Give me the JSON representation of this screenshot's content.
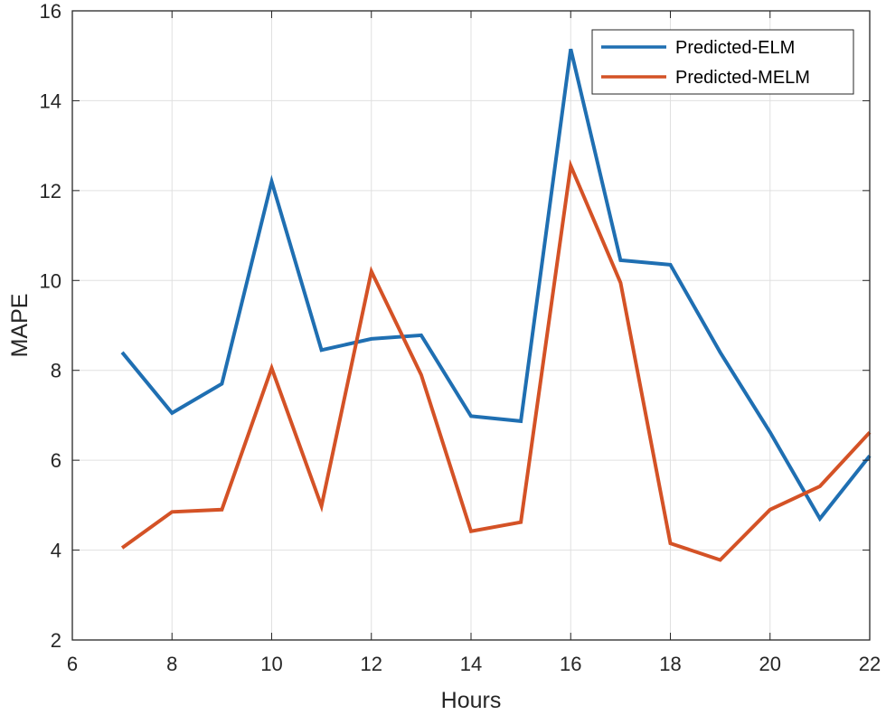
{
  "chart_data": {
    "type": "line",
    "title": "",
    "xlabel": "Hours",
    "ylabel": "MAPE",
    "xlim": [
      6,
      22
    ],
    "ylim": [
      2,
      16
    ],
    "xticks": [
      6,
      8,
      10,
      12,
      14,
      16,
      18,
      20,
      22
    ],
    "yticks": [
      2,
      4,
      6,
      8,
      10,
      12,
      14,
      16
    ],
    "grid": true,
    "legend_position": "top-right",
    "x": [
      7,
      8,
      9,
      10,
      11,
      12,
      13,
      14,
      15,
      16,
      17,
      18,
      19,
      20,
      21,
      22
    ],
    "series": [
      {
        "name": "Predicted-ELM",
        "color": "#1f6fb2",
        "values": [
          8.4,
          7.05,
          7.7,
          12.2,
          8.45,
          8.7,
          8.78,
          6.98,
          6.87,
          15.15,
          10.45,
          10.35,
          8.4,
          6.62,
          4.7,
          6.1
        ]
      },
      {
        "name": "Predicted-MELM",
        "color": "#d45226",
        "values": [
          4.05,
          4.85,
          4.9,
          8.05,
          4.98,
          10.2,
          7.9,
          4.42,
          4.62,
          12.55,
          9.95,
          4.15,
          3.78,
          4.9,
          5.42,
          6.62
        ]
      }
    ]
  }
}
